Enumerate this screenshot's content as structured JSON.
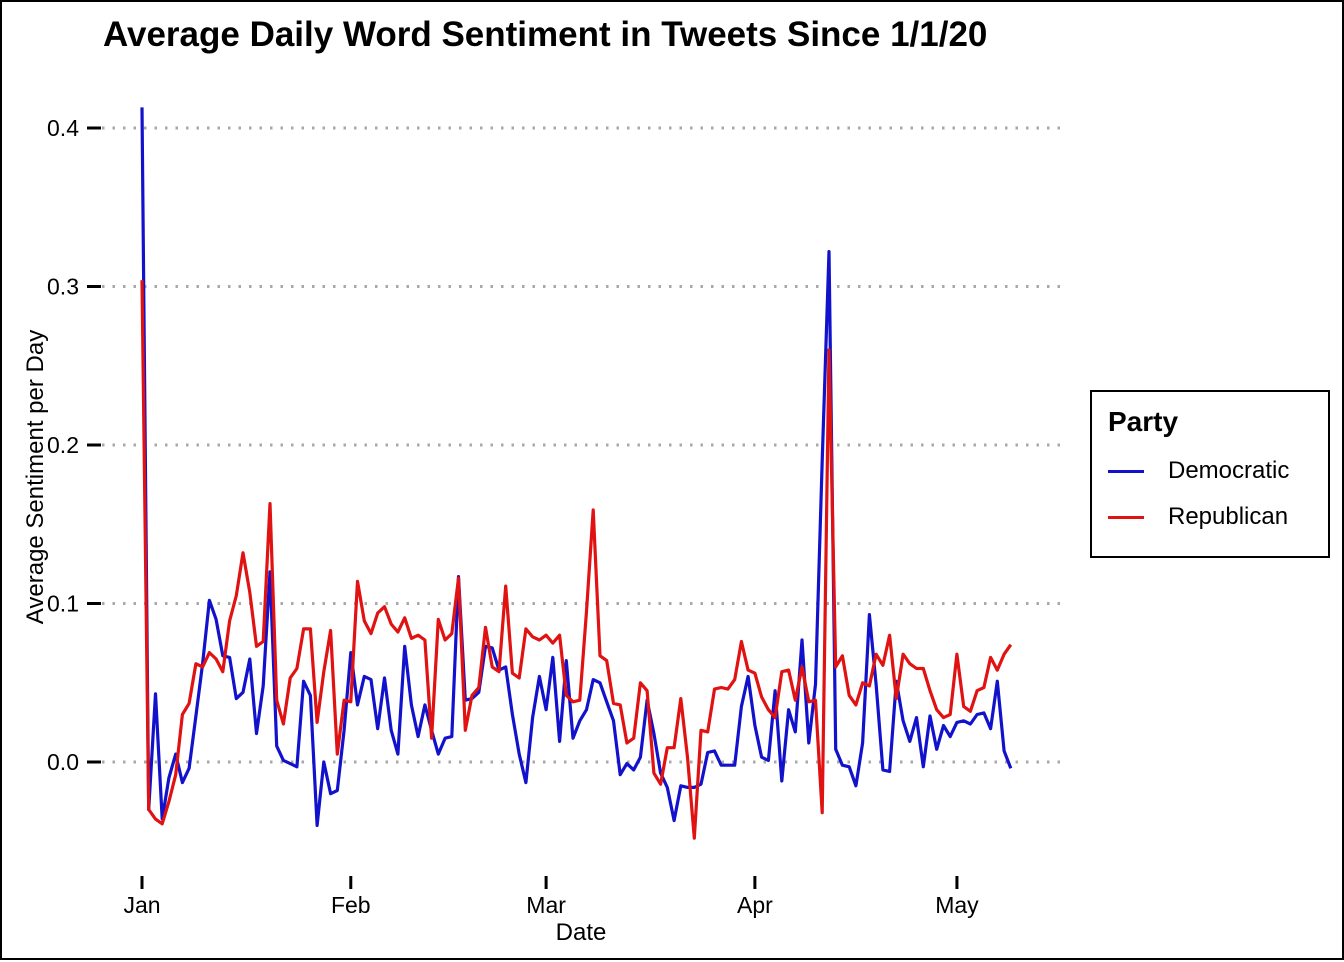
{
  "title": "Average Daily Word Sentiment in Tweets Since 1/1/20",
  "axes": {
    "x_label": "Date",
    "y_label": "Average Sentiment per Day",
    "x_tick_labels": [
      "Jan",
      "Feb",
      "Mar",
      "Apr",
      "May"
    ],
    "y_tick_labels": [
      "0.0",
      "0.1",
      "0.2",
      "0.3",
      "0.4"
    ]
  },
  "legend": {
    "title": "Party",
    "items": [
      {
        "label": "Democratic",
        "color": "#1212cc"
      },
      {
        "label": "Republican",
        "color": "#e01212"
      }
    ]
  },
  "colors": {
    "gridline": "#a8a8a8",
    "tick": "#000000",
    "text": "#000000",
    "background": "#ffffff",
    "border": "#000000"
  },
  "chart_data": {
    "type": "line",
    "title": "Average Daily Word Sentiment in Tweets Since 1/1/20",
    "xlabel": "Date",
    "ylabel": "Average Sentiment per Day",
    "x_start_date": "2020-01-01",
    "x_unit": "day",
    "n_points": 130,
    "x_tick_day_indices": [
      0,
      31,
      60,
      91,
      121
    ],
    "x_tick_labels": [
      "Jan",
      "Feb",
      "Mar",
      "Apr",
      "May"
    ],
    "y_tick_values": [
      0.0,
      0.1,
      0.2,
      0.3,
      0.4
    ],
    "ylim": [
      -0.065,
      0.43
    ],
    "grid": "dotted-horizontal",
    "legend_position": "right",
    "series": [
      {
        "name": "Democratic",
        "color": "#1212cc",
        "values": [
          0.413,
          -0.03,
          0.043,
          -0.036,
          -0.01,
          0.005,
          -0.013,
          -0.004,
          0.029,
          0.062,
          0.102,
          0.09,
          0.067,
          0.066,
          0.04,
          0.044,
          0.065,
          0.018,
          0.048,
          0.12,
          0.01,
          0.001,
          -0.001,
          -0.003,
          0.051,
          0.042,
          -0.04,
          0.0,
          -0.02,
          -0.018,
          0.02,
          0.069,
          0.036,
          0.054,
          0.052,
          0.021,
          0.053,
          0.02,
          0.005,
          0.073,
          0.036,
          0.016,
          0.036,
          0.02,
          0.005,
          0.015,
          0.016,
          0.117,
          0.039,
          0.04,
          0.044,
          0.073,
          0.072,
          0.058,
          0.06,
          0.03,
          0.005,
          -0.013,
          0.028,
          0.054,
          0.033,
          0.066,
          0.013,
          0.064,
          0.015,
          0.026,
          0.033,
          0.052,
          0.05,
          0.038,
          0.026,
          -0.008,
          -0.001,
          -0.005,
          0.003,
          0.039,
          0.018,
          -0.007,
          -0.016,
          -0.037,
          -0.015,
          -0.016,
          -0.016,
          -0.014,
          0.006,
          0.007,
          -0.002,
          -0.002,
          -0.002,
          0.035,
          0.054,
          0.023,
          0.003,
          0.001,
          0.045,
          -0.012,
          0.033,
          0.019,
          0.077,
          0.012,
          0.049,
          0.19,
          0.322,
          0.008,
          -0.002,
          -0.003,
          -0.015,
          0.012,
          0.093,
          0.049,
          -0.005,
          -0.006,
          0.051,
          0.026,
          0.013,
          0.028,
          -0.003,
          0.029,
          0.008,
          0.023,
          0.016,
          0.025,
          0.026,
          0.024,
          0.03,
          0.031,
          0.021,
          0.051,
          0.007,
          -0.004
        ]
      },
      {
        "name": "Republican",
        "color": "#e01212",
        "values": [
          0.304,
          -0.03,
          -0.036,
          -0.039,
          -0.025,
          -0.008,
          0.03,
          0.037,
          0.062,
          0.06,
          0.069,
          0.065,
          0.057,
          0.089,
          0.105,
          0.132,
          0.107,
          0.073,
          0.076,
          0.163,
          0.039,
          0.024,
          0.053,
          0.059,
          0.084,
          0.084,
          0.025,
          0.057,
          0.083,
          0.005,
          0.039,
          0.038,
          0.114,
          0.089,
          0.081,
          0.094,
          0.098,
          0.087,
          0.082,
          0.091,
          0.078,
          0.08,
          0.077,
          0.015,
          0.09,
          0.077,
          0.081,
          0.116,
          0.02,
          0.042,
          0.047,
          0.085,
          0.06,
          0.057,
          0.111,
          0.056,
          0.053,
          0.084,
          0.079,
          0.077,
          0.08,
          0.075,
          0.08,
          0.042,
          0.038,
          0.039,
          0.095,
          0.159,
          0.067,
          0.064,
          0.037,
          0.036,
          0.012,
          0.015,
          0.05,
          0.045,
          -0.007,
          -0.014,
          0.009,
          0.009,
          0.04,
          0.003,
          -0.048,
          0.02,
          0.019,
          0.046,
          0.047,
          0.046,
          0.052,
          0.076,
          0.058,
          0.056,
          0.041,
          0.033,
          0.028,
          0.057,
          0.058,
          0.039,
          0.06,
          0.038,
          0.039,
          -0.032,
          0.26,
          0.06,
          0.067,
          0.042,
          0.036,
          0.05,
          0.048,
          0.068,
          0.061,
          0.08,
          0.04,
          0.068,
          0.062,
          0.059,
          0.059,
          0.045,
          0.033,
          0.028,
          0.03,
          0.068,
          0.035,
          0.032,
          0.045,
          0.047,
          0.066,
          0.058,
          0.068,
          0.074
        ]
      }
    ]
  }
}
